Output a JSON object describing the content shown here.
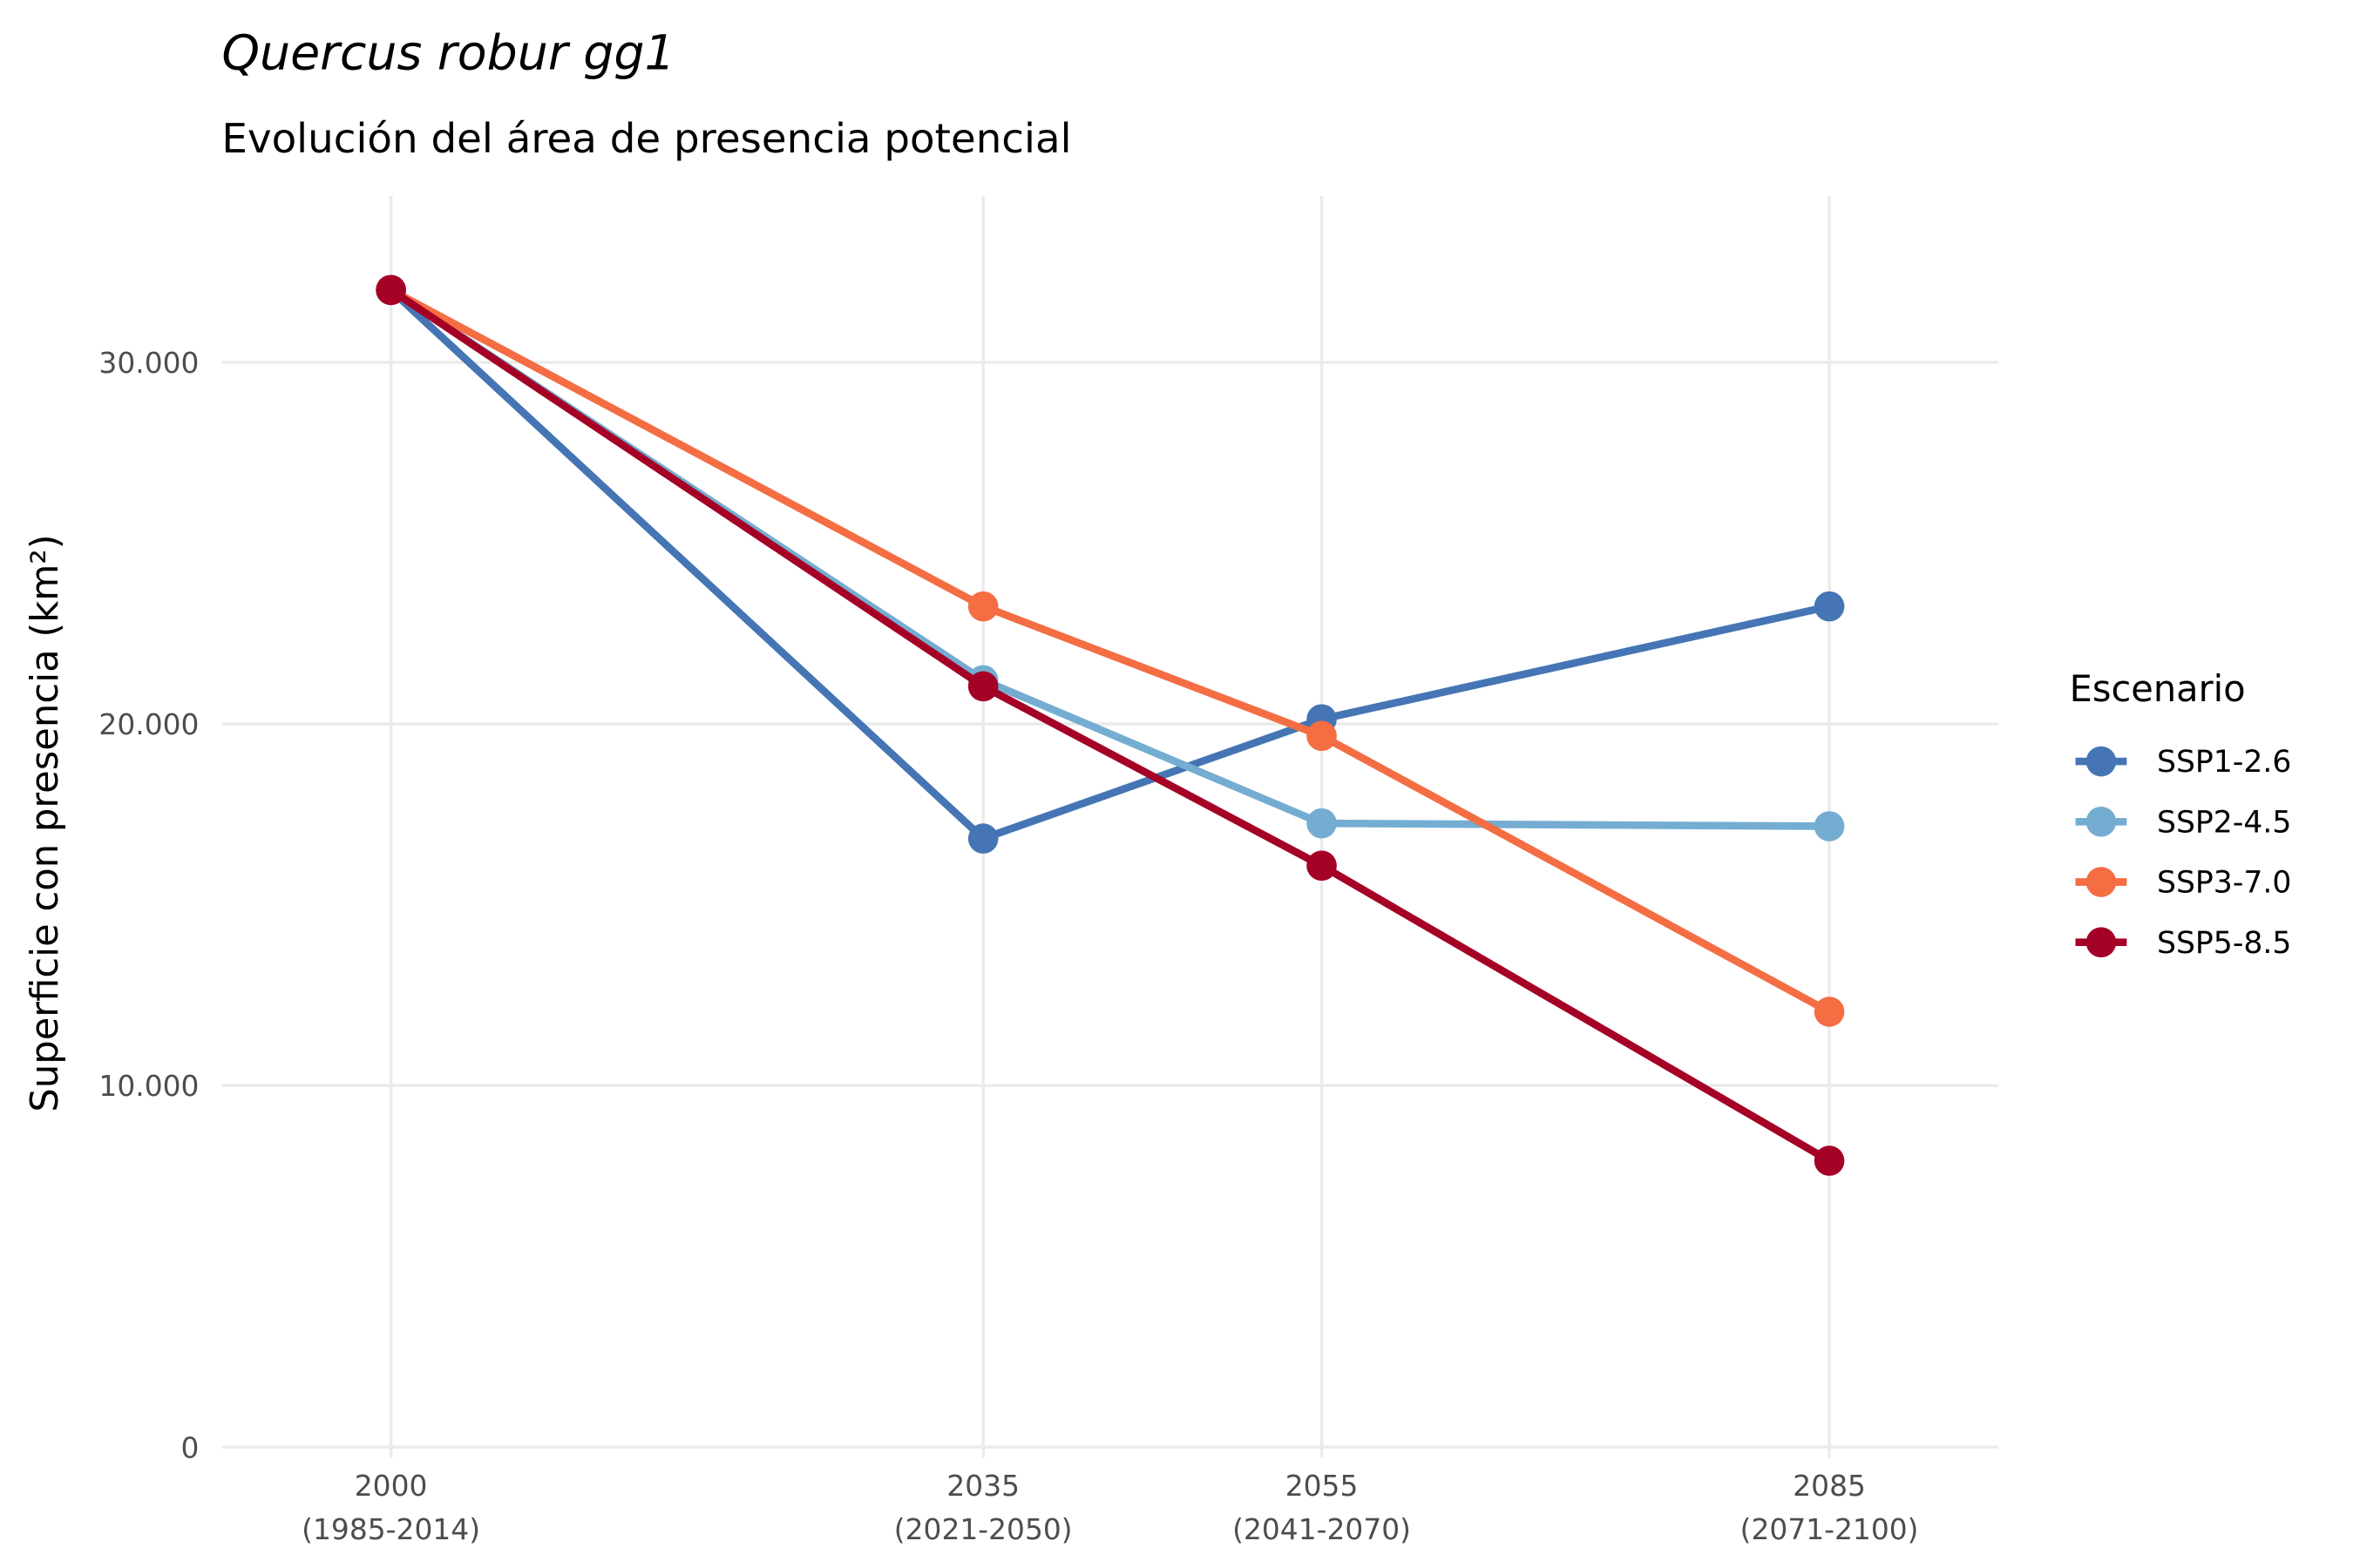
{
  "chart_data": {
    "type": "line",
    "title": "Quercus robur gg1",
    "subtitle": "Evolución del área de presencia potencial",
    "y_label": "Superficie con presencia (km²)",
    "legend_title": "Escenario",
    "legend_position": "right",
    "grid": true,
    "x": [
      2000,
      2035,
      2055,
      2085
    ],
    "xlim": [
      1990,
      2095
    ],
    "xticks": [
      {
        "value": 2000,
        "label": "2000\n(1985-2014)"
      },
      {
        "value": 2035,
        "label": "2035\n(2021-2050)"
      },
      {
        "value": 2055,
        "label": "2055\n(2041-2070)"
      },
      {
        "value": 2085,
        "label": "2085\n(2071-2100)"
      }
    ],
    "ylim": [
      -300,
      34600
    ],
    "yticks": [
      0,
      {
        "value": 10000,
        "label": "10.000"
      },
      {
        "value": 20000,
        "label": "20.000"
      },
      {
        "value": 30000,
        "label": "30.000"
      }
    ],
    "series": [
      {
        "name": "SSP1-2.6",
        "color": "#4575b4",
        "values": [
          32000,
          16830,
          20130,
          23250
        ]
      },
      {
        "name": "SSP2-4.5",
        "color": "#74add1",
        "values": [
          32000,
          21210,
          17250,
          17170
        ]
      },
      {
        "name": "SSP3-7.0",
        "color": "#f46d43",
        "values": [
          32000,
          23250,
          19670,
          12040
        ]
      },
      {
        "name": "SSP5-8.5",
        "color": "#a50026",
        "values": [
          32000,
          21040,
          16080,
          7920
        ]
      }
    ]
  }
}
